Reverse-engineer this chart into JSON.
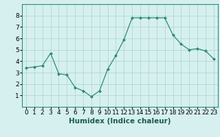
{
  "x": [
    0,
    1,
    2,
    3,
    4,
    5,
    6,
    7,
    8,
    9,
    10,
    11,
    12,
    13,
    14,
    15,
    16,
    17,
    18,
    19,
    20,
    21,
    22,
    23
  ],
  "y": [
    3.4,
    3.5,
    3.6,
    4.7,
    2.9,
    2.8,
    1.7,
    1.4,
    0.9,
    1.4,
    3.3,
    4.5,
    5.9,
    7.8,
    7.8,
    7.8,
    7.8,
    7.8,
    6.3,
    5.5,
    5.0,
    5.1,
    4.9,
    4.2
  ],
  "line_color": "#2e8b72",
  "marker": "D",
  "marker_size": 2.0,
  "bg_color": "#d6f0ef",
  "grid_color": "#b0d8d4",
  "xlabel": "Humidex (Indice chaleur)",
  "xlabel_fontsize": 7.5,
  "ylim": [
    0,
    9
  ],
  "xlim": [
    -0.5,
    23.5
  ],
  "yticks": [
    1,
    2,
    3,
    4,
    5,
    6,
    7,
    8
  ],
  "xticks": [
    0,
    1,
    2,
    3,
    4,
    5,
    6,
    7,
    8,
    9,
    10,
    11,
    12,
    13,
    14,
    15,
    16,
    17,
    18,
    19,
    20,
    21,
    22,
    23
  ],
  "tick_fontsize": 6.5
}
